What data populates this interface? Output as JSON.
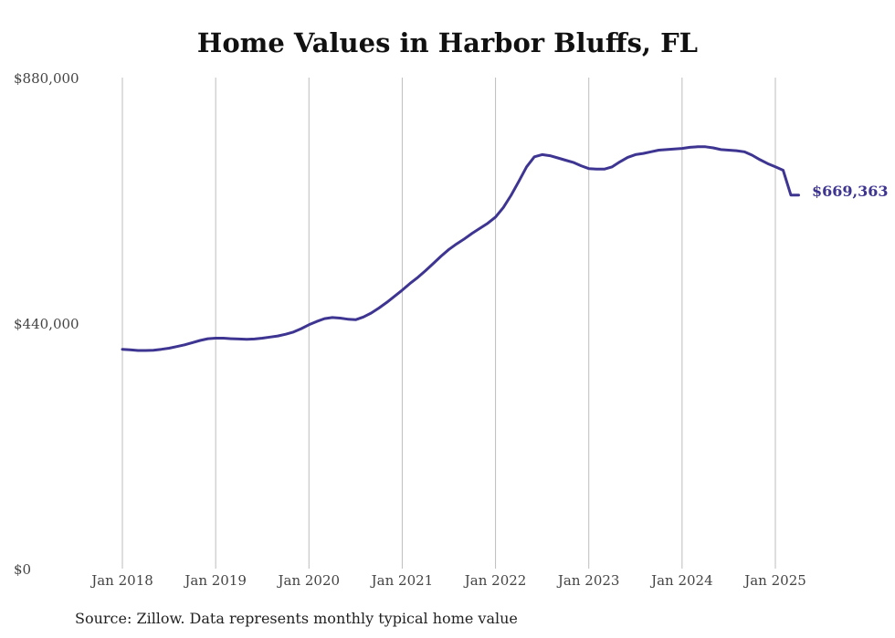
{
  "title": "Home Values in Harbor Bluffs, FL",
  "source": "Source: Zillow. Data represents monthly typical home value",
  "colors": {
    "line": "#3d3591",
    "grid": "#bdbdbd",
    "text": "#444444"
  },
  "chart_data": {
    "type": "line",
    "title": "Home Values in Harbor Bluffs, FL",
    "xlabel": "",
    "ylabel": "",
    "ylim": [
      0,
      880000
    ],
    "xlim": [
      "2018-01",
      "2025-04"
    ],
    "y_ticks": [
      0,
      440000,
      880000
    ],
    "y_tick_labels": [
      "$0",
      "$440,000",
      "$880,000"
    ],
    "x_ticks": [
      "2018-01",
      "2019-01",
      "2020-01",
      "2021-01",
      "2022-01",
      "2023-01",
      "2024-01",
      "2025-01"
    ],
    "x_tick_labels": [
      "Jan 2018",
      "Jan 2019",
      "Jan 2020",
      "Jan 2021",
      "Jan 2022",
      "Jan 2023",
      "Jan 2024",
      "Jan 2025"
    ],
    "grid": "vertical",
    "end_label": "$669,363",
    "series": [
      {
        "x": [
          "2018-01",
          "2018-02",
          "2018-03",
          "2018-04",
          "2018-05",
          "2018-06",
          "2018-07",
          "2018-08",
          "2018-09",
          "2018-10",
          "2018-11",
          "2018-12",
          "2019-01",
          "2019-02",
          "2019-03",
          "2019-04",
          "2019-05",
          "2019-06",
          "2019-07",
          "2019-08",
          "2019-09",
          "2019-10",
          "2019-11",
          "2019-12",
          "2020-01",
          "2020-02",
          "2020-03",
          "2020-04",
          "2020-05",
          "2020-06",
          "2020-07",
          "2020-08",
          "2020-09",
          "2020-10",
          "2020-11",
          "2020-12",
          "2021-01",
          "2021-02",
          "2021-03",
          "2021-04",
          "2021-05",
          "2021-06",
          "2021-07",
          "2021-08",
          "2021-09",
          "2021-10",
          "2021-11",
          "2021-12",
          "2022-01",
          "2022-02",
          "2022-03",
          "2022-04",
          "2022-05",
          "2022-06",
          "2022-07",
          "2022-08",
          "2022-09",
          "2022-10",
          "2022-11",
          "2022-12",
          "2023-01",
          "2023-02",
          "2023-03",
          "2023-04",
          "2023-05",
          "2023-06",
          "2023-07",
          "2023-08",
          "2023-09",
          "2023-10",
          "2023-11",
          "2023-12",
          "2024-01",
          "2024-02",
          "2024-03",
          "2024-04",
          "2024-05",
          "2024-06",
          "2024-07",
          "2024-08",
          "2024-09",
          "2024-10",
          "2024-11",
          "2024-12",
          "2025-01",
          "2025-02",
          "2025-03",
          "2025-04"
        ],
        "values": [
          393000,
          392000,
          391000,
          391000,
          391500,
          393000,
          395000,
          398000,
          401000,
          405000,
          409000,
          412000,
          413000,
          413000,
          412000,
          411500,
          411000,
          411500,
          413000,
          415000,
          417000,
          420000,
          424000,
          430000,
          437000,
          443000,
          448000,
          450000,
          449000,
          447000,
          446000,
          451000,
          458000,
          467000,
          477000,
          488000,
          499000,
          511000,
          522000,
          534000,
          547000,
          560000,
          572000,
          582000,
          591000,
          601000,
          610000,
          619000,
          630000,
          647000,
          669000,
          694000,
          720000,
          738000,
          742000,
          740000,
          736000,
          732000,
          728000,
          722000,
          717000,
          716000,
          716000,
          720000,
          729000,
          737000,
          742000,
          744000,
          747000,
          750000,
          751000,
          752000,
          753000,
          755000,
          756000,
          756000,
          754000,
          751000,
          750000,
          749000,
          747000,
          741000,
          733000,
          726000,
          720000,
          714000,
          669363,
          669363
        ]
      }
    ]
  }
}
